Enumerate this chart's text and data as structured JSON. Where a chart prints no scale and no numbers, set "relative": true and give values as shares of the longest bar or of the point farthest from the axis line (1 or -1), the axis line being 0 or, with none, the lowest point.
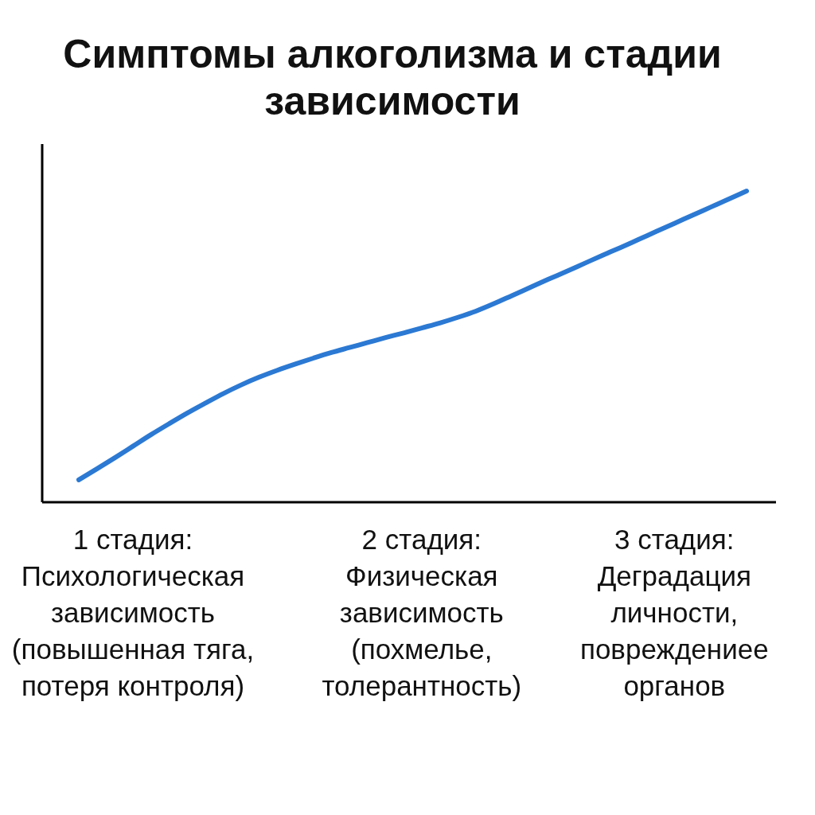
{
  "chart_data": {
    "type": "line",
    "title": "Симптомы алкоголизма и стадии зависимости",
    "categories": [
      null,
      null,
      null,
      "1 стадия:\nПсихологическая\nзависимость\n(повышенная тяга,\nпотеря контроля)",
      null,
      null,
      null,
      null,
      null,
      null,
      null,
      null,
      null,
      null,
      null,
      null,
      null,
      null,
      null,
      "2 стадия:\nФизическая\nзависимость\n(похмелье,\nтолерантность)",
      null,
      null,
      null,
      null,
      null,
      null,
      null,
      null,
      null,
      null,
      null,
      null,
      null,
      "3 стадия:\nДеградация\nличности,\nповреждениее\nорганов",
      null,
      null,
      null,
      null
    ],
    "relative": true,
    "series": [
      {
        "color": "#2b79d3",
        "values": [
          0.072,
          0.107,
          0.143,
          0.18,
          0.217,
          0.252,
          0.286,
          0.318,
          0.349,
          0.377,
          0.402,
          0.424,
          0.444,
          0.463,
          0.481,
          0.497,
          0.513,
          0.529,
          0.544,
          0.56,
          0.576,
          0.594,
          0.614,
          0.638,
          0.664,
          0.69,
          0.716,
          0.741,
          0.767,
          0.793,
          0.818,
          0.844,
          0.87,
          0.896,
          0.922,
          0.948,
          0.974,
          1
        ]
      }
    ]
  }
}
